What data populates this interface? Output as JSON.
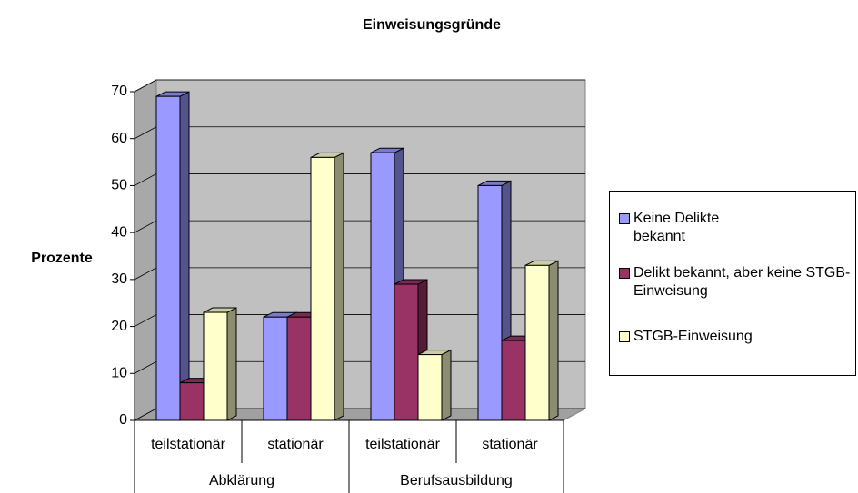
{
  "chart_data": {
    "type": "bar3d",
    "title": "Einweisungsgründe",
    "y_label": "Prozente",
    "categories": [
      "teilstationär",
      "stationär",
      "teilstationär",
      "stationär"
    ],
    "category_groups": [
      "Abklärung",
      "Berufsausbildung"
    ],
    "series": [
      {
        "name": "Keine Delikte bekannt",
        "color": "#9999ff",
        "values": [
          69,
          22,
          57,
          50
        ]
      },
      {
        "name": "Delikt bekannt, aber keine STGB-Einweisung",
        "color": "#993366",
        "values": [
          8,
          22,
          29,
          17
        ]
      },
      {
        "name": "STGB-Einweisung",
        "color": "#ffffcc",
        "values": [
          23,
          56,
          14,
          33
        ]
      }
    ],
    "ylim": [
      0,
      70
    ],
    "yticks": [
      0,
      10,
      20,
      30,
      40,
      50,
      60,
      70
    ],
    "grid": true,
    "legend": "right"
  }
}
